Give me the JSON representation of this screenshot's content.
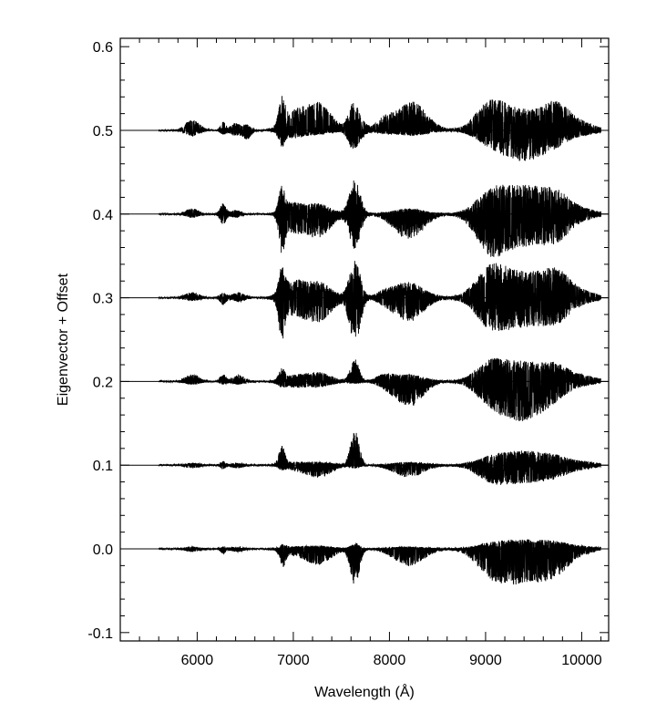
{
  "chart_data": {
    "type": "line",
    "title": "",
    "xlabel": "Wavelength (Å)",
    "ylabel": "Eigenvector + Offset",
    "xlim": [
      5200,
      10280
    ],
    "ylim": [
      -0.11,
      0.61
    ],
    "x_ticks": [
      {
        "value": 6000,
        "label": "6000"
      },
      {
        "value": 7000,
        "label": "7000"
      },
      {
        "value": 8000,
        "label": "8000"
      },
      {
        "value": 9000,
        "label": "9000"
      },
      {
        "value": 10000,
        "label": "10000"
      }
    ],
    "y_ticks": [
      {
        "value": -0.1,
        "label": "-0.1"
      },
      {
        "value": 0.0,
        "label": "0.0"
      },
      {
        "value": 0.1,
        "label": "0.1"
      },
      {
        "value": 0.2,
        "label": "0.2"
      },
      {
        "value": 0.3,
        "label": "0.3"
      },
      {
        "value": 0.4,
        "label": "0.4"
      },
      {
        "value": 0.5,
        "label": "0.5"
      },
      {
        "value": 0.6,
        "label": "0.6"
      }
    ],
    "x_minor_step": 200,
    "y_minor_step": 0.02,
    "grid": false,
    "legend": "none",
    "line_color": "#000000",
    "x_range_data": [
      5600,
      10200
    ],
    "series": [
      {
        "offset": 0.5,
        "features": [
          {
            "center": 5950,
            "width": 70,
            "up": 0.012,
            "down": 0.006
          },
          {
            "center": 6270,
            "width": 25,
            "up": 0.01,
            "down": 0.004
          },
          {
            "center": 6400,
            "width": 50,
            "up": 0.008,
            "down": 0.006
          },
          {
            "center": 6520,
            "width": 40,
            "up": 0.006,
            "down": 0.01
          },
          {
            "center": 6880,
            "width": 30,
            "up": 0.03,
            "down": 0.015
          },
          {
            "center": 7000,
            "width": 110,
            "up": 0.02,
            "down": 0.008
          },
          {
            "center": 7260,
            "width": 130,
            "up": 0.032,
            "down": 0.004
          },
          {
            "center": 7620,
            "width": 50,
            "up": 0.028,
            "down": 0.02
          },
          {
            "center": 7700,
            "width": 60,
            "up": 0.01,
            "down": 0.006
          },
          {
            "center": 7950,
            "width": 80,
            "up": 0.012,
            "down": 0.003
          },
          {
            "center": 8230,
            "width": 150,
            "up": 0.034,
            "down": 0.006
          },
          {
            "center": 9050,
            "width": 150,
            "up": 0.03,
            "down": 0.012
          },
          {
            "center": 9400,
            "width": 220,
            "up": 0.022,
            "down": 0.035
          },
          {
            "center": 9750,
            "width": 140,
            "up": 0.028,
            "down": 0.01
          },
          {
            "center": 10050,
            "width": 120,
            "up": 0.006,
            "down": 0.004
          }
        ]
      },
      {
        "offset": 0.4,
        "features": [
          {
            "center": 5950,
            "width": 60,
            "up": 0.006,
            "down": 0.004
          },
          {
            "center": 6270,
            "width": 30,
            "up": 0.012,
            "down": 0.012
          },
          {
            "center": 6400,
            "width": 50,
            "up": 0.004,
            "down": 0.004
          },
          {
            "center": 6880,
            "width": 30,
            "up": 0.028,
            "down": 0.038
          },
          {
            "center": 6990,
            "width": 90,
            "up": 0.012,
            "down": 0.018
          },
          {
            "center": 7250,
            "width": 130,
            "up": 0.012,
            "down": 0.028
          },
          {
            "center": 7640,
            "width": 55,
            "up": 0.04,
            "down": 0.042
          },
          {
            "center": 8200,
            "width": 150,
            "up": 0.006,
            "down": 0.03
          },
          {
            "center": 9050,
            "width": 150,
            "up": 0.02,
            "down": 0.038
          },
          {
            "center": 9400,
            "width": 240,
            "up": 0.032,
            "down": 0.035
          },
          {
            "center": 9750,
            "width": 140,
            "up": 0.018,
            "down": 0.022
          },
          {
            "center": 10050,
            "width": 120,
            "up": 0.004,
            "down": 0.004
          }
        ]
      },
      {
        "offset": 0.3,
        "features": [
          {
            "center": 5950,
            "width": 70,
            "up": 0.006,
            "down": 0.003
          },
          {
            "center": 6270,
            "width": 30,
            "up": 0.006,
            "down": 0.008
          },
          {
            "center": 6430,
            "width": 60,
            "up": 0.006,
            "down": 0.004
          },
          {
            "center": 6880,
            "width": 30,
            "up": 0.028,
            "down": 0.04
          },
          {
            "center": 7000,
            "width": 110,
            "up": 0.018,
            "down": 0.018
          },
          {
            "center": 7260,
            "width": 130,
            "up": 0.018,
            "down": 0.028
          },
          {
            "center": 7640,
            "width": 55,
            "up": 0.045,
            "down": 0.055
          },
          {
            "center": 7950,
            "width": 80,
            "up": 0.006,
            "down": 0.004
          },
          {
            "center": 8200,
            "width": 150,
            "up": 0.018,
            "down": 0.028
          },
          {
            "center": 9050,
            "width": 150,
            "up": 0.03,
            "down": 0.028
          },
          {
            "center": 9400,
            "width": 240,
            "up": 0.028,
            "down": 0.032
          },
          {
            "center": 9750,
            "width": 140,
            "up": 0.025,
            "down": 0.02
          },
          {
            "center": 10050,
            "width": 120,
            "up": 0.005,
            "down": 0.004
          }
        ]
      },
      {
        "offset": 0.2,
        "features": [
          {
            "center": 5950,
            "width": 70,
            "up": 0.008,
            "down": 0.003
          },
          {
            "center": 6270,
            "width": 30,
            "up": 0.008,
            "down": 0.003
          },
          {
            "center": 6430,
            "width": 60,
            "up": 0.007,
            "down": 0.003
          },
          {
            "center": 6880,
            "width": 30,
            "up": 0.012,
            "down": 0.004
          },
          {
            "center": 7000,
            "width": 110,
            "up": 0.006,
            "down": 0.006
          },
          {
            "center": 7260,
            "width": 130,
            "up": 0.01,
            "down": 0.006
          },
          {
            "center": 7640,
            "width": 45,
            "up": 0.026,
            "down": 0.002
          },
          {
            "center": 7950,
            "width": 80,
            "up": 0.008,
            "down": 0.004
          },
          {
            "center": 8200,
            "width": 140,
            "up": 0.008,
            "down": 0.03
          },
          {
            "center": 9050,
            "width": 150,
            "up": 0.02,
            "down": 0.02
          },
          {
            "center": 9400,
            "width": 220,
            "up": 0.022,
            "down": 0.045
          },
          {
            "center": 9750,
            "width": 140,
            "up": 0.015,
            "down": 0.01
          },
          {
            "center": 10050,
            "width": 120,
            "up": 0.005,
            "down": 0.003
          }
        ]
      },
      {
        "offset": 0.1,
        "features": [
          {
            "center": 5950,
            "width": 70,
            "up": 0.002,
            "down": 0.003
          },
          {
            "center": 6270,
            "width": 25,
            "up": 0.004,
            "down": 0.004
          },
          {
            "center": 6420,
            "width": 60,
            "up": 0.002,
            "down": 0.003
          },
          {
            "center": 6880,
            "width": 30,
            "up": 0.022,
            "down": 0.003
          },
          {
            "center": 7000,
            "width": 110,
            "up": 0.003,
            "down": 0.004
          },
          {
            "center": 7260,
            "width": 130,
            "up": 0.003,
            "down": 0.014
          },
          {
            "center": 7640,
            "width": 45,
            "up": 0.04,
            "down": 0.003
          },
          {
            "center": 8200,
            "width": 150,
            "up": 0.003,
            "down": 0.014
          },
          {
            "center": 9050,
            "width": 150,
            "up": 0.006,
            "down": 0.014
          },
          {
            "center": 9400,
            "width": 240,
            "up": 0.016,
            "down": 0.02
          },
          {
            "center": 9750,
            "width": 140,
            "up": 0.006,
            "down": 0.008
          },
          {
            "center": 10050,
            "width": 120,
            "up": 0.003,
            "down": 0.003
          }
        ]
      },
      {
        "offset": 0.0,
        "features": [
          {
            "center": 5950,
            "width": 70,
            "up": 0.002,
            "down": 0.003
          },
          {
            "center": 6270,
            "width": 25,
            "up": 0.002,
            "down": 0.005
          },
          {
            "center": 6420,
            "width": 60,
            "up": 0.002,
            "down": 0.003
          },
          {
            "center": 6890,
            "width": 30,
            "up": 0.004,
            "down": 0.018
          },
          {
            "center": 7000,
            "width": 110,
            "up": 0.002,
            "down": 0.005
          },
          {
            "center": 7260,
            "width": 130,
            "up": 0.003,
            "down": 0.018
          },
          {
            "center": 7640,
            "width": 45,
            "up": 0.006,
            "down": 0.045
          },
          {
            "center": 8200,
            "width": 150,
            "up": 0.002,
            "down": 0.02
          },
          {
            "center": 9050,
            "width": 150,
            "up": 0.004,
            "down": 0.022
          },
          {
            "center": 9400,
            "width": 240,
            "up": 0.01,
            "down": 0.04
          },
          {
            "center": 9750,
            "width": 140,
            "up": 0.005,
            "down": 0.018
          },
          {
            "center": 10050,
            "width": 120,
            "up": 0.002,
            "down": 0.003
          }
        ]
      }
    ]
  }
}
